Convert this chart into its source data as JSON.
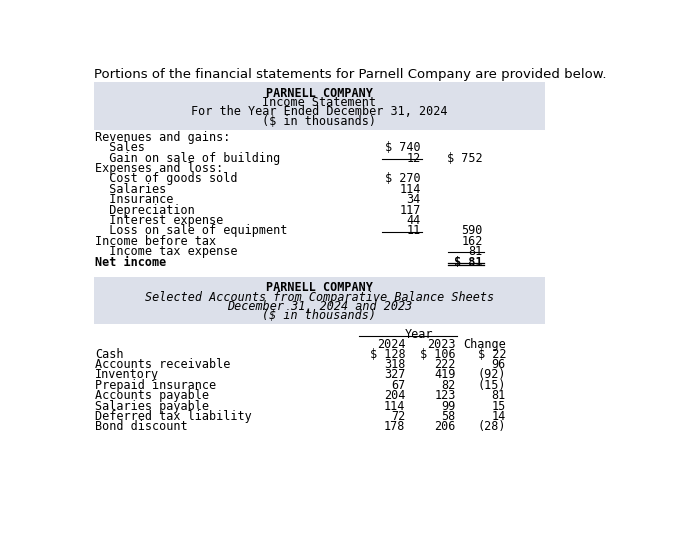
{
  "intro_text": "Portions of the financial statements for Parnell Company are provided below.",
  "table1": {
    "bg_color": "#dce0ea",
    "title_lines": [
      "PARNELL COMPANY",
      "Income Statement",
      "For the Year Ended December 31, 2024",
      "($ in thousands)"
    ],
    "rows": [
      {
        "label": "Revenues and gains:",
        "col1": "",
        "col2": "",
        "bold": false,
        "indent": 0
      },
      {
        "label": "  Sales",
        "col1": "$ 740",
        "col2": "",
        "bold": false,
        "indent": 0
      },
      {
        "label": "  Gain on sale of building",
        "col1": "12",
        "col2": "$ 752",
        "bold": false,
        "indent": 0,
        "underline_col1": true
      },
      {
        "label": "Expenses and loss:",
        "col1": "",
        "col2": "",
        "bold": false,
        "indent": 0
      },
      {
        "label": "  Cost of goods sold",
        "col1": "$ 270",
        "col2": "",
        "bold": false,
        "indent": 0
      },
      {
        "label": "  Salaries",
        "col1": "114",
        "col2": "",
        "bold": false,
        "indent": 0
      },
      {
        "label": "  Insurance",
        "col1": "34",
        "col2": "",
        "bold": false,
        "indent": 0
      },
      {
        "label": "  Depreciation",
        "col1": "117",
        "col2": "",
        "bold": false,
        "indent": 0
      },
      {
        "label": "  Interest expense",
        "col1": "44",
        "col2": "",
        "bold": false,
        "indent": 0
      },
      {
        "label": "  Loss on sale of equipment",
        "col1": "11",
        "col2": "590",
        "bold": false,
        "indent": 0,
        "underline_col1": true
      },
      {
        "label": "Income before tax",
        "col1": "",
        "col2": "162",
        "bold": false,
        "indent": 0
      },
      {
        "label": "  Income tax expense",
        "col1": "",
        "col2": "81",
        "bold": false,
        "indent": 0,
        "underline_col2": true
      },
      {
        "label": "Net income",
        "col1": "",
        "col2": "$ 81",
        "bold": true,
        "indent": 0,
        "double_underline_col2": true
      }
    ]
  },
  "table2": {
    "bg_color": "#dce0ea",
    "title_lines": [
      "PARNELL COMPANY",
      "Selected Accounts from Comparative Balance Sheets",
      "December 31, 2024 and 2023",
      "($ in thousands)"
    ],
    "title_styles": [
      "bold_normal",
      "normal_italic",
      "normal_italic",
      "normal_italic"
    ],
    "year_label": "Year",
    "col_headers": [
      "2024",
      "2023",
      "Change"
    ],
    "rows": [
      {
        "label": "Cash",
        "col1": "$ 128",
        "col2": "$ 106",
        "col3": "$ 22"
      },
      {
        "label": "Accounts receivable",
        "col1": "318",
        "col2": "222",
        "col3": "96"
      },
      {
        "label": "Inventory",
        "col1": "327",
        "col2": "419",
        "col3": "(92)"
      },
      {
        "label": "Prepaid insurance",
        "col1": "67",
        "col2": "82",
        "col3": "(15)"
      },
      {
        "label": "Accounts payable",
        "col1": "204",
        "col2": "123",
        "col3": "81"
      },
      {
        "label": "Salaries payable",
        "col1": "114",
        "col2": "99",
        "col3": "15"
      },
      {
        "label": "Deferred tax liability",
        "col1": "72",
        "col2": "58",
        "col3": "14"
      },
      {
        "label": "Bond discount",
        "col1": "178",
        "col2": "206",
        "col3": "(28)"
      }
    ]
  },
  "font_family": "monospace",
  "font_size": 8.5,
  "title_font_size": 8.5,
  "intro_font_size": 9.5
}
